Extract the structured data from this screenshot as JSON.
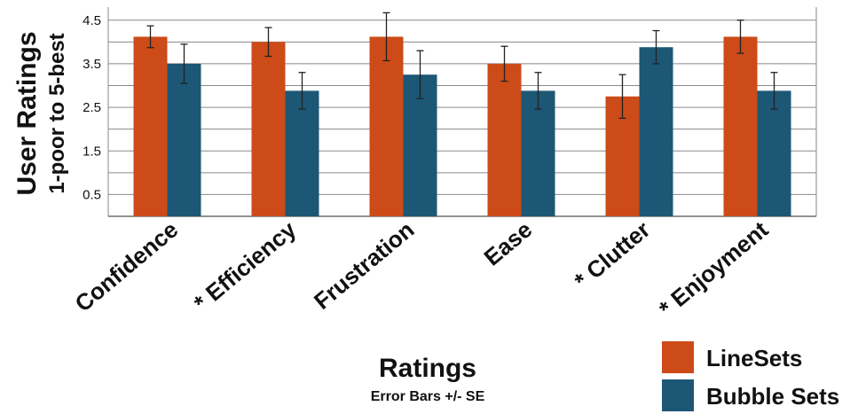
{
  "chart_data": {
    "type": "bar",
    "title": "",
    "ylabel": "User Ratings",
    "ylabel_sub": "1-poor to 5-best",
    "xlabel": "Ratings",
    "xlabel_sub": "Error Bars +/- SE",
    "ylim": [
      0,
      4.8
    ],
    "yticks": [
      "0.5",
      "1.5",
      "2.5",
      "3.5",
      "4.5"
    ],
    "ytick_values": [
      0.5,
      1.5,
      2.5,
      3.5,
      4.5
    ],
    "categories": [
      "Confidence",
      "* Efficiency",
      "Frustration",
      "Ease",
      "* Clutter",
      "* Enjoyment"
    ],
    "series": [
      {
        "name": "LineSets",
        "color": "#cc4b18",
        "values": [
          4.12,
          4.0,
          4.12,
          3.5,
          2.75,
          4.12
        ],
        "errors": [
          0.25,
          0.33,
          0.55,
          0.4,
          0.5,
          0.38
        ]
      },
      {
        "name": "Bubble Sets",
        "color": "#1c5775",
        "values": [
          3.5,
          2.88,
          3.25,
          2.88,
          3.88,
          2.88
        ],
        "errors": [
          0.45,
          0.42,
          0.55,
          0.42,
          0.38,
          0.42
        ]
      }
    ],
    "grid": true,
    "legend_position": "bottom-right"
  }
}
